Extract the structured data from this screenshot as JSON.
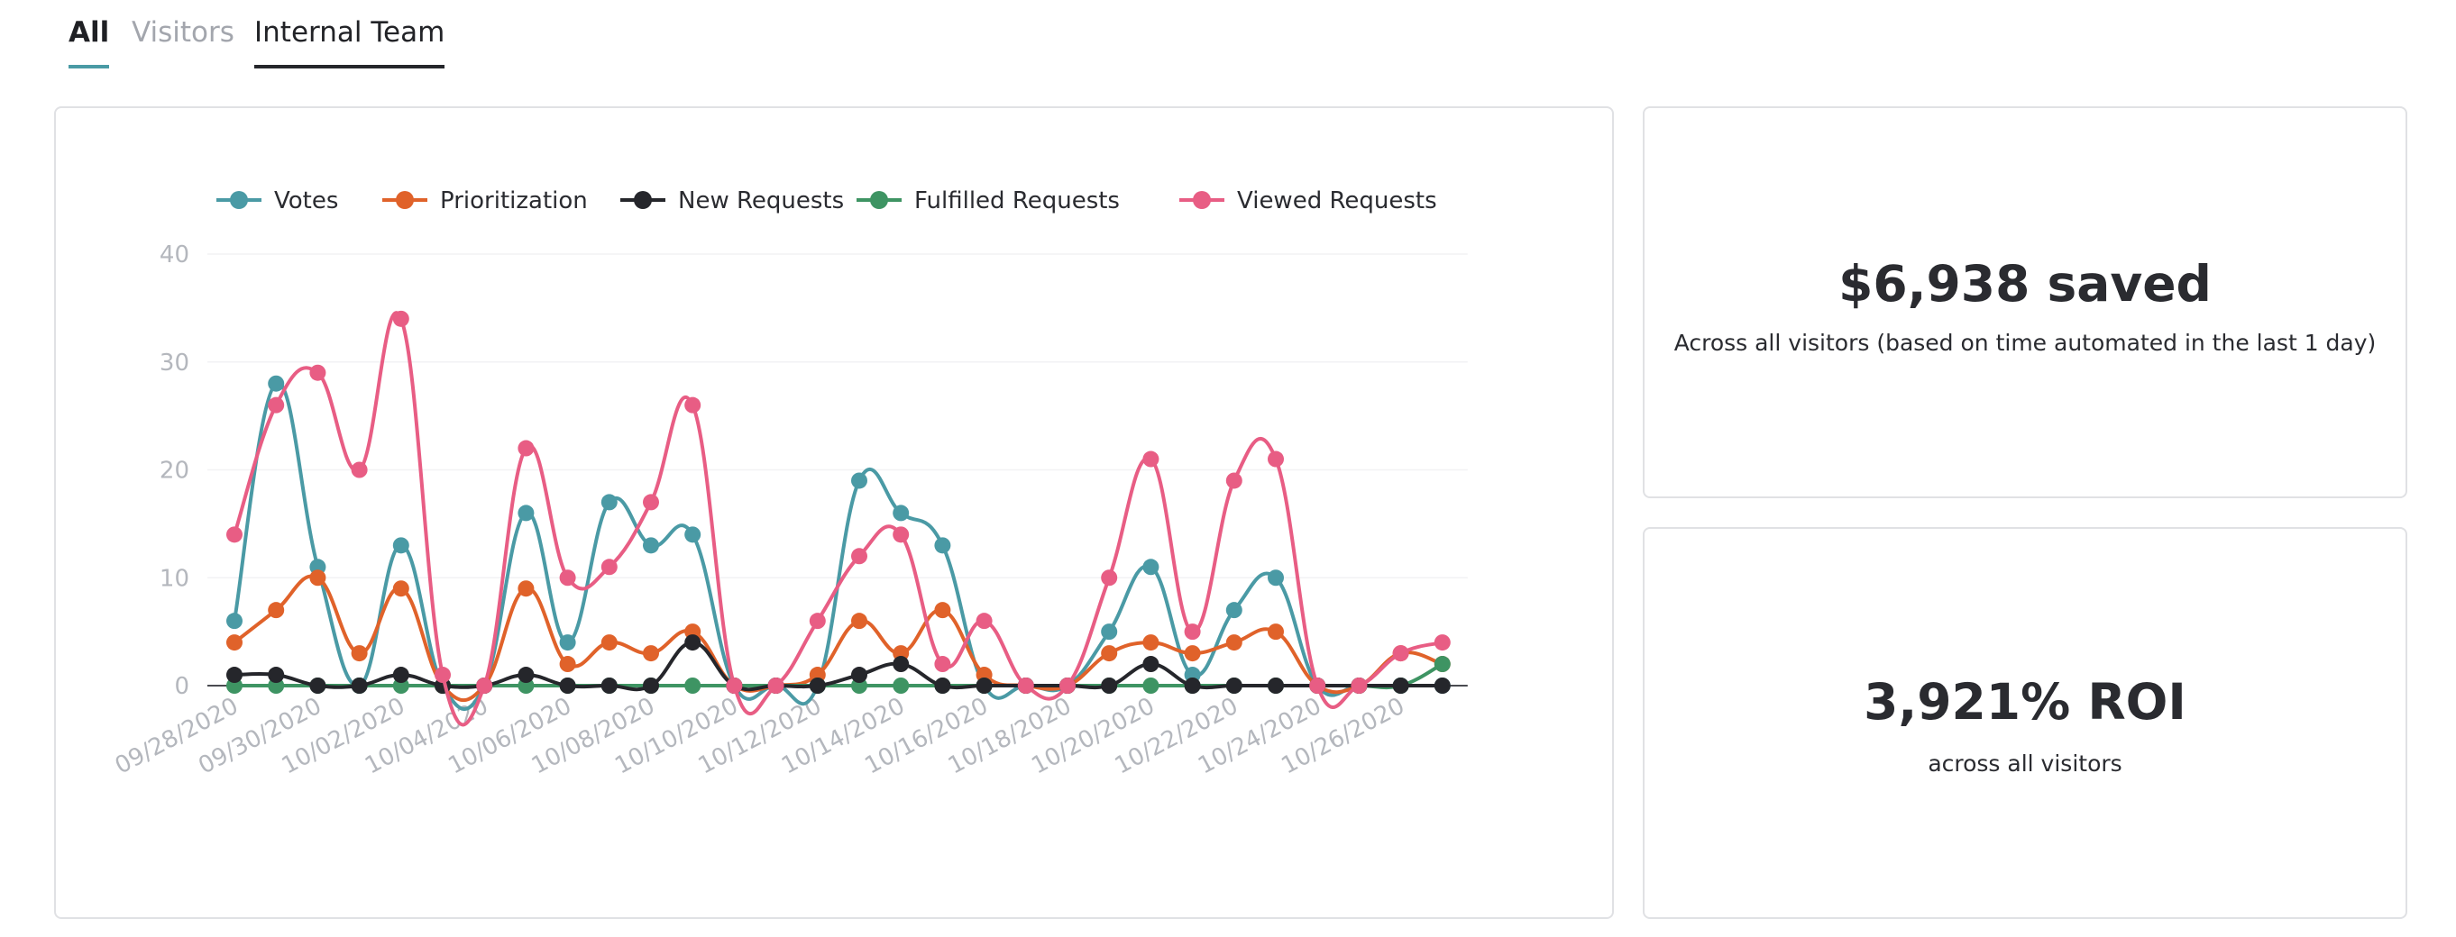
{
  "tabs": [
    {
      "label": "All"
    },
    {
      "label": "Visitors"
    },
    {
      "label": "Internal Team"
    }
  ],
  "stats": [
    {
      "value": "$6,938 saved",
      "caption": "Across all visitors (based on time automated in the last 1 day)"
    },
    {
      "value": "3,921% ROI",
      "caption": "across all visitors"
    }
  ],
  "chart_data": {
    "type": "line",
    "x": [
      "09/28/2020",
      "09/29/2020",
      "09/30/2020",
      "10/01/2020",
      "10/02/2020",
      "10/03/2020",
      "10/04/2020",
      "10/05/2020",
      "10/06/2020",
      "10/07/2020",
      "10/08/2020",
      "10/09/2020",
      "10/10/2020",
      "10/11/2020",
      "10/12/2020",
      "10/13/2020",
      "10/14/2020",
      "10/15/2020",
      "10/16/2020",
      "10/17/2020",
      "10/18/2020",
      "10/19/2020",
      "10/20/2020",
      "10/21/2020",
      "10/22/2020",
      "10/23/2020",
      "10/24/2020",
      "10/25/2020",
      "10/26/2020",
      "10/27/2020"
    ],
    "x_tick_labels": [
      "09/28/2020",
      "09/30/2020",
      "10/02/2020",
      "10/04/2020",
      "10/06/2020",
      "10/08/2020",
      "10/10/2020",
      "10/12/2020",
      "10/14/2020",
      "10/16/2020",
      "10/18/2020",
      "10/20/2020",
      "10/22/2020",
      "10/24/2020",
      "10/26/2020"
    ],
    "y_ticks": [
      0,
      10,
      20,
      30,
      40
    ],
    "ylim": [
      0,
      40
    ],
    "legend_position": "top",
    "series": [
      {
        "name": "Votes",
        "color": "#4a9aa5",
        "values": [
          6,
          28,
          11,
          0,
          13,
          0,
          0,
          16,
          4,
          17,
          13,
          14,
          0,
          0,
          0,
          19,
          16,
          13,
          0,
          0,
          0,
          5,
          11,
          1,
          7,
          10,
          0,
          0,
          0,
          0
        ]
      },
      {
        "name": "Prioritization",
        "color": "#e0622a",
        "values": [
          4,
          7,
          10,
          3,
          9,
          0,
          0,
          9,
          2,
          4,
          3,
          5,
          0,
          0,
          1,
          6,
          3,
          7,
          1,
          0,
          0,
          3,
          4,
          3,
          4,
          5,
          0,
          0,
          3,
          2
        ]
      },
      {
        "name": "New Requests",
        "color": "#25262b",
        "values": [
          1,
          1,
          0,
          0,
          1,
          0,
          0,
          1,
          0,
          0,
          0,
          4,
          0,
          0,
          0,
          1,
          2,
          0,
          0,
          0,
          0,
          0,
          2,
          0,
          0,
          0,
          0,
          0,
          0,
          0
        ]
      },
      {
        "name": "Fulfilled Requests",
        "color": "#3e9463",
        "values": [
          0,
          0,
          0,
          0,
          0,
          0,
          0,
          0,
          0,
          0,
          0,
          0,
          0,
          0,
          0,
          0,
          0,
          0,
          0,
          0,
          0,
          0,
          0,
          0,
          0,
          0,
          0,
          0,
          0,
          2
        ]
      },
      {
        "name": "Viewed Requests",
        "color": "#e85d84",
        "values": [
          14,
          26,
          29,
          20,
          34,
          1,
          0,
          22,
          10,
          11,
          17,
          26,
          0,
          0,
          6,
          12,
          14,
          2,
          6,
          0,
          0,
          10,
          21,
          5,
          19,
          21,
          0,
          0,
          3,
          4
        ]
      }
    ]
  }
}
